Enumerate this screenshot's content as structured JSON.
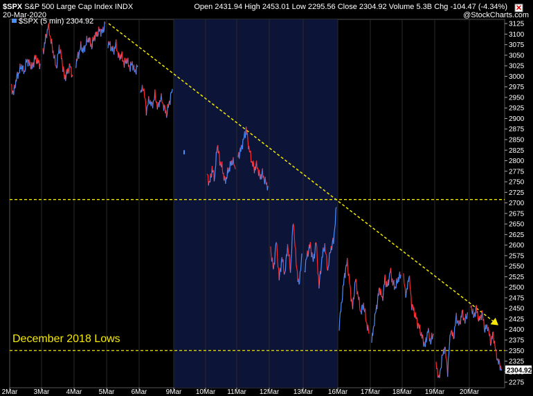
{
  "header": {
    "symbol": "$SPX",
    "name": "S&P 500 Large Cap Index",
    "exchange": "INDX",
    "date": "20-Mar-2020",
    "open_label": "Open",
    "open": "2431.94",
    "high_label": "High",
    "high": "2453.01",
    "low_label": "Low",
    "low": "2295.56",
    "close_label": "Close",
    "close": "2304.92",
    "volume_label": "Volume",
    "volume": "5.3B",
    "chg_label": "Chg",
    "chg": "-104.47 (-4.34%)",
    "brand": "@StockCharts.com"
  },
  "legend": {
    "series_label": "$SPX (5 min) 2304.92"
  },
  "colors": {
    "up": "#4a90ff",
    "down": "#ff2a2a",
    "trend": "#f5e900",
    "shade": "#0c1438",
    "grid": "#2a2a2a"
  },
  "annotation": {
    "text": "December 2018 Lows"
  },
  "chart_data": {
    "type": "line",
    "title": "$SPX S&P 500 Large Cap Index INDX",
    "subtitle": "$SPX (5 min)",
    "interval": "5 min",
    "xlabel": "",
    "ylabel": "",
    "ylim": [
      2262,
      3135
    ],
    "y_ticks": [
      2275,
      2300,
      2325,
      2350,
      2375,
      2400,
      2425,
      2450,
      2475,
      2500,
      2525,
      2550,
      2575,
      2600,
      2625,
      2650,
      2675,
      2700,
      2725,
      2750,
      2775,
      2800,
      2825,
      2850,
      2875,
      2900,
      2925,
      2950,
      2975,
      3000,
      3025,
      3050,
      3075,
      3100,
      3125
    ],
    "x_tick_labels": [
      "2Mar",
      "3Mar",
      "4Mar",
      "5Mar",
      "6Mar",
      "9Mar",
      "10Mar",
      "11Mar",
      "12Mar",
      "13Mar",
      "16Mar",
      "17Mar",
      "18Mar",
      "19Mar",
      "20Mar"
    ],
    "shaded_weeks": [
      [
        "9Mar",
        "16Mar"
      ]
    ],
    "last_value": 2304.92,
    "sessions": [
      {
        "day": "2Mar",
        "prices": [
          2975,
          2960,
          2995,
          3010,
          3025,
          3010,
          3040,
          3030,
          3020,
          3045,
          3035,
          3030
        ]
      },
      {
        "day": "3Mar",
        "prices": [
          3055,
          3090,
          3120,
          3085,
          3050,
          3020,
          3070,
          3040,
          2995,
          3010,
          3025,
          3000
        ]
      },
      {
        "day": "4Mar",
        "prices": [
          3025,
          3050,
          3070,
          3060,
          3080,
          3090,
          3070,
          3095,
          3100,
          3110,
          3105,
          3125
        ]
      },
      {
        "day": "5Mar",
        "prices": [
          3080,
          3070,
          3060,
          3075,
          3045,
          3050,
          3030,
          3040,
          3020,
          3030,
          3010,
          3025
        ]
      },
      {
        "day": "6Mar",
        "prices": [
          2960,
          2975,
          2920,
          2945,
          2930,
          2955,
          2925,
          2950,
          2930,
          2910,
          2940,
          2970
        ]
      },
      {
        "day": "9Mar",
        "prices": [
          2820
        ]
      },
      {
        "day": "10Mar",
        "prices": [
          2770,
          2745,
          2780,
          2760,
          2840,
          2800,
          2780,
          2750,
          2770,
          2790,
          2800,
          2780
        ]
      },
      {
        "day": "11Mar",
        "prices": [
          2810,
          2825,
          2850,
          2875,
          2830,
          2800,
          2780,
          2790,
          2760,
          2770,
          2750,
          2740
        ]
      },
      {
        "day": "12Mar",
        "prices": [
          2590,
          2540,
          2610,
          2520,
          2570,
          2530,
          2600,
          2540,
          2660,
          2560,
          2500,
          2580
        ]
      },
      {
        "day": "13Mar",
        "prices": [
          2540,
          2580,
          2600,
          2560,
          2610,
          2500,
          2570,
          2600,
          2540,
          2590,
          2610,
          2690
        ]
      },
      {
        "day": "16Mar",
        "prices": [
          2410,
          2470,
          2530,
          2560,
          2500,
          2450,
          2520,
          2480,
          2440,
          2460,
          2420,
          2390
        ]
      },
      {
        "day": "17Mar",
        "prices": [
          2370,
          2420,
          2460,
          2500,
          2470,
          2520,
          2500,
          2540,
          2510,
          2500,
          2520,
          2530
        ]
      },
      {
        "day": "18Mar",
        "prices": [
          2520,
          2480,
          2530,
          2460,
          2440,
          2420,
          2400,
          2380,
          2360,
          2400,
          2370,
          2390
        ]
      },
      {
        "day": "19Mar",
        "prices": [
          2320,
          2280,
          2330,
          2360,
          2300,
          2400,
          2380,
          2430,
          2410,
          2440,
          2420,
          2440
        ]
      },
      {
        "day": "20Mar",
        "prices": [
          2460,
          2430,
          2450,
          2420,
          2440,
          2400,
          2410,
          2370,
          2390,
          2340,
          2320,
          2305
        ]
      }
    ],
    "trendline": {
      "from": [
        "5Mar",
        3125
      ],
      "to": [
        "20Mar",
        2410
      ],
      "style": "dashed"
    },
    "support_lines": [
      {
        "value": 2708,
        "style": "dashed"
      },
      {
        "value": 2350,
        "style": "dashed",
        "label": "December 2018 Lows"
      }
    ],
    "grid": false
  }
}
